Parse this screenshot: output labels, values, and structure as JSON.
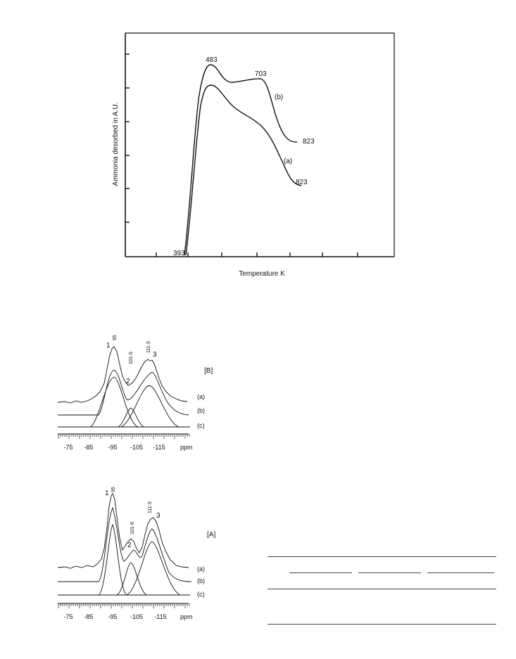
{
  "tpd_figure": {
    "ylabel": "Ammonia desorbed in A.U.",
    "xlabel": "Temperature K",
    "labels": {
      "start": "393",
      "peak1": "483",
      "peak2": "703",
      "end_b": "823",
      "end_a": "823",
      "curve_b": "(b)",
      "curve_a": "(a)"
    }
  },
  "nmr_B": {
    "panel_label": "[B]",
    "peaks": [
      {
        "number": "1",
        "ppm": "95"
      },
      {
        "number": "2",
        "ppm": "101·6"
      },
      {
        "number": "3",
        "ppm": "111·9"
      }
    ],
    "traces": [
      "(a)",
      "(b)",
      "(c)"
    ],
    "axis": {
      "ticks": [
        "-75",
        "-85",
        "-95",
        "-105",
        "-115"
      ],
      "unit": "ppm"
    }
  },
  "nmr_A": {
    "panel_label": "[A]",
    "peaks": [
      {
        "number": "1",
        "ppm": "95"
      },
      {
        "number": "2",
        "ppm": "101·6"
      },
      {
        "number": "3",
        "ppm": "111·9"
      }
    ],
    "traces": [
      "(a)",
      "(b)",
      "(c)"
    ],
    "axis": {
      "ticks": [
        "-75",
        "-85",
        "-95",
        "-105",
        "-115"
      ],
      "unit": "ppm"
    }
  }
}
